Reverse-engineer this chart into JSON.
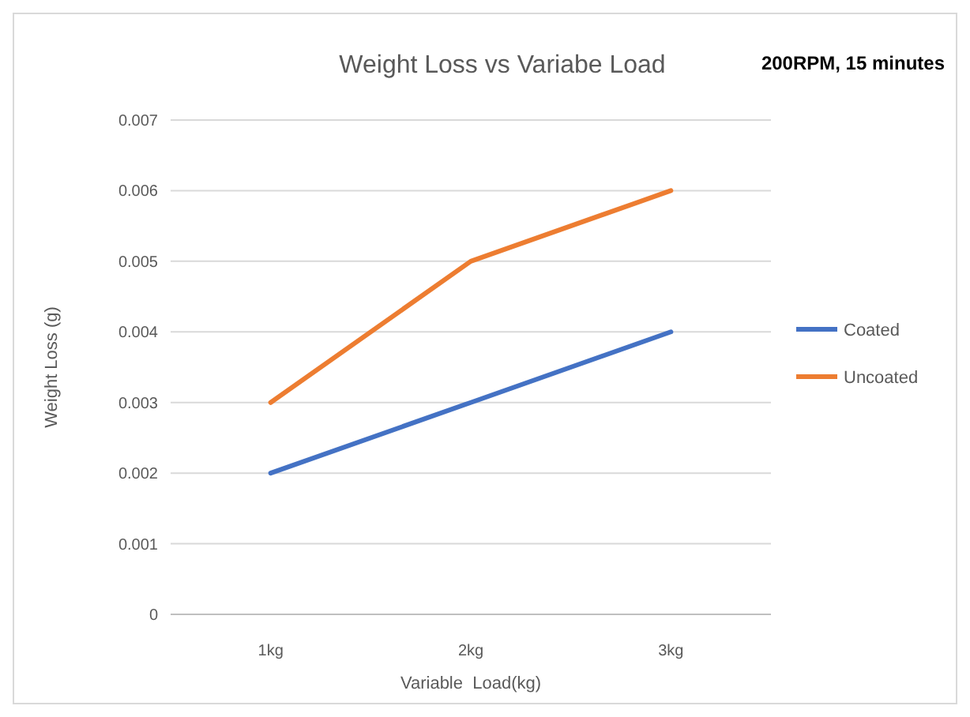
{
  "chart_data": {
    "type": "line",
    "title": "Weight Loss vs Variabe Load",
    "xlabel": "Variable  Load(kg)",
    "ylabel": "Weight Loss (g)",
    "annotations": [
      "200RPM, 15 minutes"
    ],
    "categories": [
      "1kg",
      "2kg",
      "3kg"
    ],
    "series": [
      {
        "name": "Coated",
        "color": "#4472c4",
        "values": [
          0.002,
          0.003,
          0.004
        ]
      },
      {
        "name": "Uncoated",
        "color": "#ed7d31",
        "values": [
          0.003,
          0.005,
          0.006
        ]
      }
    ],
    "ylim": [
      0,
      0.007
    ],
    "yticks": [
      0,
      0.001,
      0.002,
      0.003,
      0.004,
      0.005,
      0.006,
      0.007
    ],
    "grid": "y",
    "legend": "right",
    "marker": "none",
    "line_style": "solid"
  }
}
